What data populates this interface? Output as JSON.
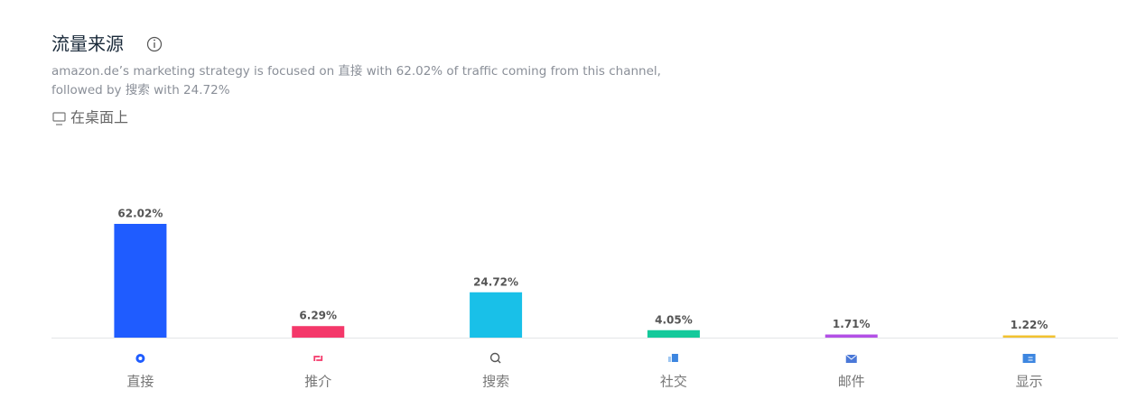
{
  "chart_data": {
    "type": "bar",
    "title": "流量来源",
    "subtitle": [
      "amazon.de’s marketing strategy is focused on 直接 with 62.02% of traffic coming from this channel,",
      "followed by 搜索 with 24.72%"
    ],
    "device": "在桌面上",
    "categories": [
      "直接",
      "推介",
      "搜索",
      "社交",
      "邮件",
      "显示"
    ],
    "values": [
      62.02,
      6.29,
      24.72,
      4.05,
      1.71,
      1.22
    ],
    "value_labels": [
      "62.02%",
      "6.29%",
      "24.72%",
      "4.05%",
      "1.71%",
      "1.22%"
    ],
    "colors": [
      "#1f5cff",
      "#f4386a",
      "#19c0e8",
      "#14c99b",
      "#b350e6",
      "#f2c230"
    ]
  }
}
